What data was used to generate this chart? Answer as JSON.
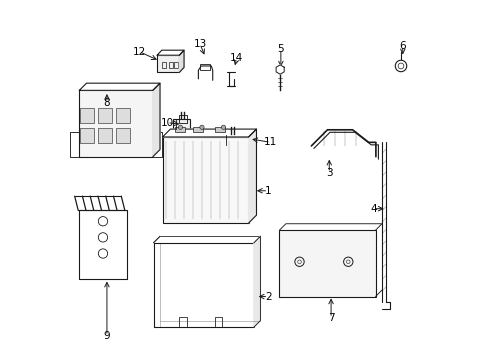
{
  "background": "#ffffff",
  "line_color": "#1a1a1a",
  "label_color": "#000000",
  "default_lw": 0.8,
  "label_data": {
    "1": [
      0.565,
      0.47,
      0.525,
      0.47
    ],
    "2": [
      0.565,
      0.175,
      0.53,
      0.175
    ],
    "3": [
      0.735,
      0.52,
      0.735,
      0.565
    ],
    "4": [
      0.858,
      0.42,
      0.895,
      0.42
    ],
    "5": [
      0.6,
      0.865,
      0.6,
      0.808
    ],
    "6": [
      0.94,
      0.875,
      0.94,
      0.842
    ],
    "7": [
      0.74,
      0.115,
      0.74,
      0.178
    ],
    "8": [
      0.115,
      0.715,
      0.115,
      0.748
    ],
    "9": [
      0.115,
      0.065,
      0.115,
      0.225
    ],
    "10": [
      0.283,
      0.66,
      0.325,
      0.655
    ],
    "11": [
      0.572,
      0.605,
      0.512,
      0.615
    ],
    "12": [
      0.205,
      0.858,
      0.262,
      0.832
    ],
    "13": [
      0.375,
      0.878,
      0.39,
      0.842
    ],
    "14": [
      0.477,
      0.84,
      0.47,
      0.812
    ]
  }
}
